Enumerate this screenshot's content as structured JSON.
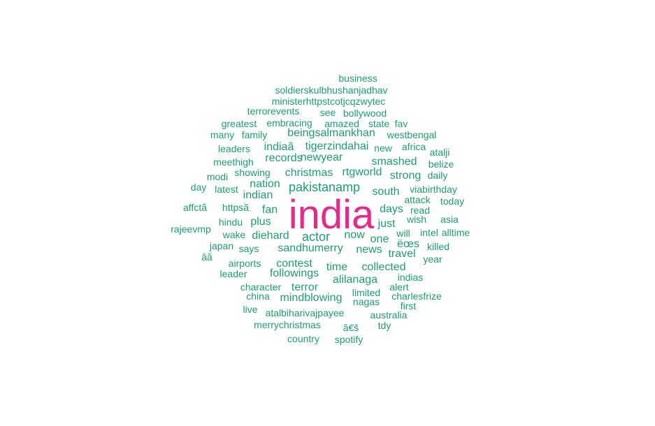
{
  "colors": {
    "primary": "#e7298a",
    "secondary": "#1b9e77"
  },
  "words": [
    {
      "text": "india",
      "color": "#e7298a"
    },
    {
      "text": "business",
      "color": "#1b9e77"
    },
    {
      "text": "soldierskulbhushanjadhav",
      "color": "#1b9e77"
    },
    {
      "text": "ministerhttpstcotjcqzwytec",
      "color": "#1b9e77"
    },
    {
      "text": "terrorevents",
      "color": "#1b9e77"
    },
    {
      "text": "see",
      "color": "#1b9e77"
    },
    {
      "text": "bollywood",
      "color": "#1b9e77"
    },
    {
      "text": "greatest",
      "color": "#1b9e77"
    },
    {
      "text": "embracing",
      "color": "#1b9e77"
    },
    {
      "text": "amazed",
      "color": "#1b9e77"
    },
    {
      "text": "state",
      "color": "#1b9e77"
    },
    {
      "text": "fav",
      "color": "#1b9e77"
    },
    {
      "text": "many",
      "color": "#1b9e77"
    },
    {
      "text": "family",
      "color": "#1b9e77"
    },
    {
      "text": "beingsalmankhan",
      "color": "#1b9e77"
    },
    {
      "text": "westbengal",
      "color": "#1b9e77"
    },
    {
      "text": "leaders",
      "color": "#1b9e77"
    },
    {
      "text": "indiaã",
      "color": "#1b9e77"
    },
    {
      "text": "tigerzindahai",
      "color": "#1b9e77"
    },
    {
      "text": "new",
      "color": "#1b9e77"
    },
    {
      "text": "africa",
      "color": "#1b9e77"
    },
    {
      "text": "atalji",
      "color": "#1b9e77"
    },
    {
      "text": "meethigh",
      "color": "#1b9e77"
    },
    {
      "text": "records",
      "color": "#1b9e77"
    },
    {
      "text": "newyear",
      "color": "#1b9e77"
    },
    {
      "text": "smashed",
      "color": "#1b9e77"
    },
    {
      "text": "belize",
      "color": "#1b9e77"
    },
    {
      "text": "modi",
      "color": "#1b9e77"
    },
    {
      "text": "showing",
      "color": "#1b9e77"
    },
    {
      "text": "christmas",
      "color": "#1b9e77"
    },
    {
      "text": "rtgworld",
      "color": "#1b9e77"
    },
    {
      "text": "strong",
      "color": "#1b9e77"
    },
    {
      "text": "daily",
      "color": "#1b9e77"
    },
    {
      "text": "day",
      "color": "#1b9e77"
    },
    {
      "text": "latest",
      "color": "#1b9e77"
    },
    {
      "text": "nation",
      "color": "#1b9e77"
    },
    {
      "text": "pakistanamp",
      "color": "#1b9e77"
    },
    {
      "text": "viabirthday",
      "color": "#1b9e77"
    },
    {
      "text": "indian",
      "color": "#1b9e77"
    },
    {
      "text": "south",
      "color": "#1b9e77"
    },
    {
      "text": "attack",
      "color": "#1b9e77"
    },
    {
      "text": "today",
      "color": "#1b9e77"
    },
    {
      "text": "affctã",
      "color": "#1b9e77"
    },
    {
      "text": "httpsã",
      "color": "#1b9e77"
    },
    {
      "text": "fan",
      "color": "#1b9e77"
    },
    {
      "text": "days",
      "color": "#1b9e77"
    },
    {
      "text": "read",
      "color": "#1b9e77"
    },
    {
      "text": "hindu",
      "color": "#1b9e77"
    },
    {
      "text": "plus",
      "color": "#1b9e77"
    },
    {
      "text": "wish",
      "color": "#1b9e77"
    },
    {
      "text": "asia",
      "color": "#1b9e77"
    },
    {
      "text": "rajeevmp",
      "color": "#1b9e77"
    },
    {
      "text": "just",
      "color": "#1b9e77"
    },
    {
      "text": "wake",
      "color": "#1b9e77"
    },
    {
      "text": "diehard",
      "color": "#1b9e77"
    },
    {
      "text": "actor",
      "color": "#1b9e77"
    },
    {
      "text": "now",
      "color": "#1b9e77"
    },
    {
      "text": "will",
      "color": "#1b9e77"
    },
    {
      "text": "intel",
      "color": "#1b9e77"
    },
    {
      "text": "alltime",
      "color": "#1b9e77"
    },
    {
      "text": "one",
      "color": "#1b9e77"
    },
    {
      "text": "japan",
      "color": "#1b9e77"
    },
    {
      "text": "ëœs",
      "color": "#1b9e77"
    },
    {
      "text": "killed",
      "color": "#1b9e77"
    },
    {
      "text": "says",
      "color": "#1b9e77"
    },
    {
      "text": "sandhumerry",
      "color": "#1b9e77"
    },
    {
      "text": "news",
      "color": "#1b9e77"
    },
    {
      "text": "âã",
      "color": "#1b9e77"
    },
    {
      "text": "travel",
      "color": "#1b9e77"
    },
    {
      "text": "year",
      "color": "#1b9e77"
    },
    {
      "text": "airports",
      "color": "#1b9e77"
    },
    {
      "text": "contest",
      "color": "#1b9e77"
    },
    {
      "text": "time",
      "color": "#1b9e77"
    },
    {
      "text": "collected",
      "color": "#1b9e77"
    },
    {
      "text": "leader",
      "color": "#1b9e77"
    },
    {
      "text": "followings",
      "color": "#1b9e77"
    },
    {
      "text": "indias",
      "color": "#1b9e77"
    },
    {
      "text": "alilanaga",
      "color": "#1b9e77"
    },
    {
      "text": "character",
      "color": "#1b9e77"
    },
    {
      "text": "terror",
      "color": "#1b9e77"
    },
    {
      "text": "alert",
      "color": "#1b9e77"
    },
    {
      "text": "limited",
      "color": "#1b9e77"
    },
    {
      "text": "china",
      "color": "#1b9e77"
    },
    {
      "text": "mindblowing",
      "color": "#1b9e77"
    },
    {
      "text": "charlesfrize",
      "color": "#1b9e77"
    },
    {
      "text": "nagas",
      "color": "#1b9e77"
    },
    {
      "text": "first",
      "color": "#1b9e77"
    },
    {
      "text": "live",
      "color": "#1b9e77"
    },
    {
      "text": "atalbiharivajpayee",
      "color": "#1b9e77"
    },
    {
      "text": "australia",
      "color": "#1b9e77"
    },
    {
      "text": "merrychristmas",
      "color": "#1b9e77"
    },
    {
      "text": "â€š",
      "color": "#1b9e77"
    },
    {
      "text": "tdy",
      "color": "#1b9e77"
    },
    {
      "text": "country",
      "color": "#1b9e77"
    },
    {
      "text": "spotify",
      "color": "#1b9e77"
    }
  ]
}
